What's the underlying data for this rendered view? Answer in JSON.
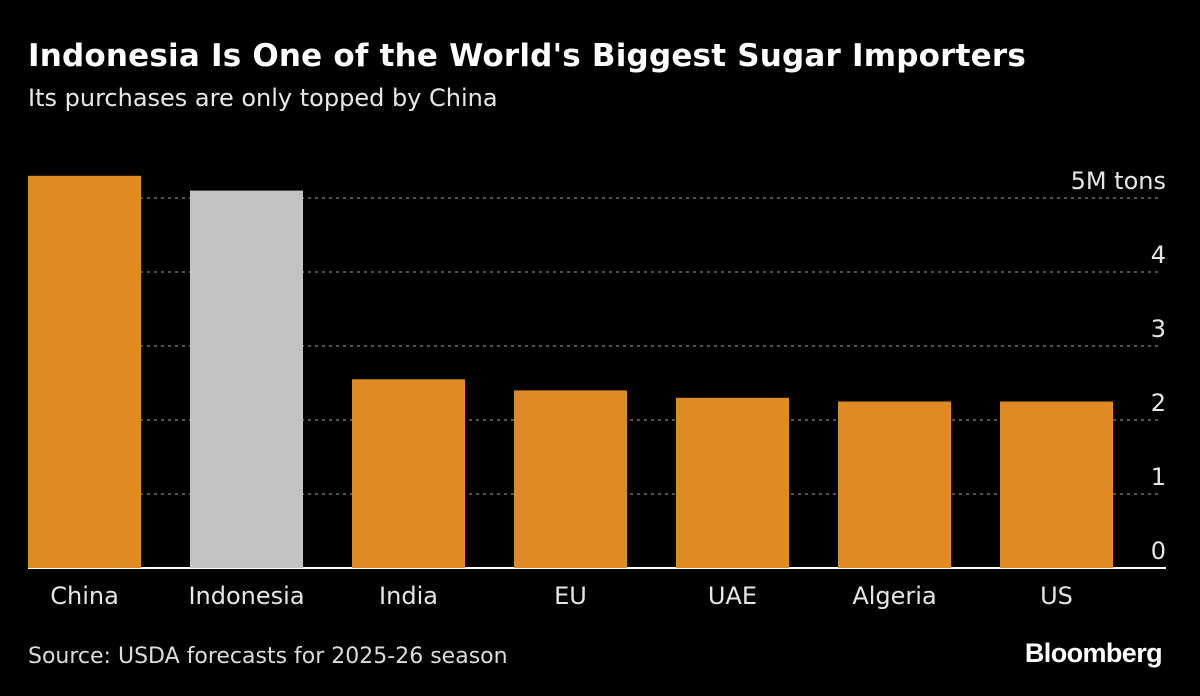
{
  "chart_data": {
    "type": "bar",
    "title": "Indonesia Is One of the World's Biggest Sugar Importers",
    "subtitle": "Its purchases are only topped by China",
    "categories": [
      "China",
      "Indonesia",
      "India",
      "EU",
      "UAE",
      "Algeria",
      "US"
    ],
    "values": [
      5.3,
      5.1,
      2.55,
      2.4,
      2.3,
      2.25,
      2.25
    ],
    "highlight_index": 1,
    "unit": "M tons",
    "ylim": [
      0,
      5
    ],
    "yticks": [
      0,
      1,
      2,
      3,
      4,
      5
    ],
    "ytick_labels": [
      "0",
      "1",
      "2",
      "3",
      "4",
      "5M tons"
    ],
    "grid": true,
    "colors": {
      "bar": "#e08a24",
      "highlight": "#c2c2c2",
      "grid": "#6e6e6e",
      "baseline": "#ffffff"
    },
    "source": "Source: USDA forecasts for 2025-26 season",
    "brand": "Bloomberg"
  }
}
